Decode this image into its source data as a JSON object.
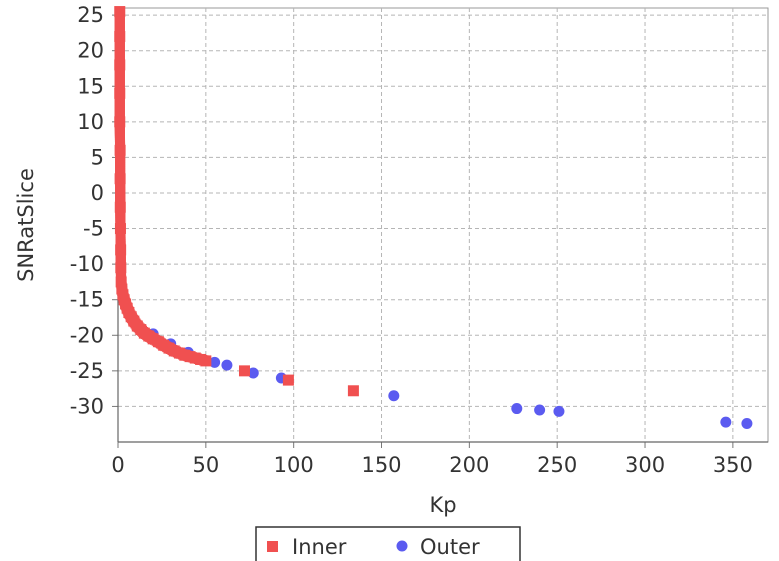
{
  "chart_data": {
    "type": "scatter",
    "title": "",
    "xlabel": "Kp",
    "ylabel": "SNRatSlice",
    "xlim": [
      0,
      370
    ],
    "ylim": [
      -35,
      26
    ],
    "x_ticks": [
      "0",
      "50",
      "100",
      "150",
      "200",
      "250",
      "300",
      "350"
    ],
    "y_ticks": [
      "25",
      "20",
      "15",
      "10",
      "5",
      "0",
      "-5",
      "-10",
      "-15",
      "-20",
      "-25",
      "-30"
    ],
    "grid": true,
    "legend_position": "bottom",
    "series": [
      {
        "name": "Inner",
        "marker": "square",
        "color": "#f05050",
        "points": [
          [
            1.0,
            25.5
          ],
          [
            1.0,
            22.0
          ],
          [
            1.0,
            18.0
          ],
          [
            1.0,
            14.0
          ],
          [
            1.0,
            10.0
          ],
          [
            1.2,
            6.0
          ],
          [
            1.2,
            2.0
          ],
          [
            1.3,
            -2.0
          ],
          [
            1.4,
            -5.0
          ],
          [
            1.5,
            -8.0
          ],
          [
            1.6,
            -10.5
          ],
          [
            1.8,
            -12.5
          ],
          [
            2.2,
            -13.5
          ],
          [
            2.8,
            -14.3
          ],
          [
            3.5,
            -15.0
          ],
          [
            4.3,
            -15.6
          ],
          [
            5.2,
            -16.2
          ],
          [
            6.2,
            -16.8
          ],
          [
            7.5,
            -17.4
          ],
          [
            9.0,
            -18.0
          ],
          [
            11.0,
            -18.7
          ],
          [
            13.0,
            -19.2
          ],
          [
            15.0,
            -19.7
          ],
          [
            17.5,
            -20.1
          ],
          [
            20.0,
            -20.5
          ],
          [
            23.0,
            -20.9
          ],
          [
            26.0,
            -21.4
          ],
          [
            29.0,
            -21.8
          ],
          [
            32.0,
            -22.2
          ],
          [
            35.0,
            -22.5
          ],
          [
            38.0,
            -22.8
          ],
          [
            41.0,
            -23.0
          ],
          [
            44.0,
            -23.2
          ],
          [
            47.0,
            -23.4
          ],
          [
            50.0,
            -23.6
          ],
          [
            72.0,
            -25.0
          ],
          [
            97.0,
            -26.3
          ],
          [
            134.0,
            -27.8
          ]
        ]
      },
      {
        "name": "Outer",
        "marker": "circle",
        "color": "#5b5bf0",
        "points": [
          [
            20.0,
            -19.8
          ],
          [
            30.0,
            -21.2
          ],
          [
            40.0,
            -22.4
          ],
          [
            55.0,
            -23.8
          ],
          [
            62.0,
            -24.2
          ],
          [
            77.0,
            -25.3
          ],
          [
            93.0,
            -26.0
          ],
          [
            157.0,
            -28.5
          ],
          [
            227.0,
            -30.3
          ],
          [
            240.0,
            -30.5
          ],
          [
            251.0,
            -30.7
          ],
          [
            346.0,
            -32.2
          ],
          [
            358.0,
            -32.4
          ]
        ]
      }
    ]
  }
}
